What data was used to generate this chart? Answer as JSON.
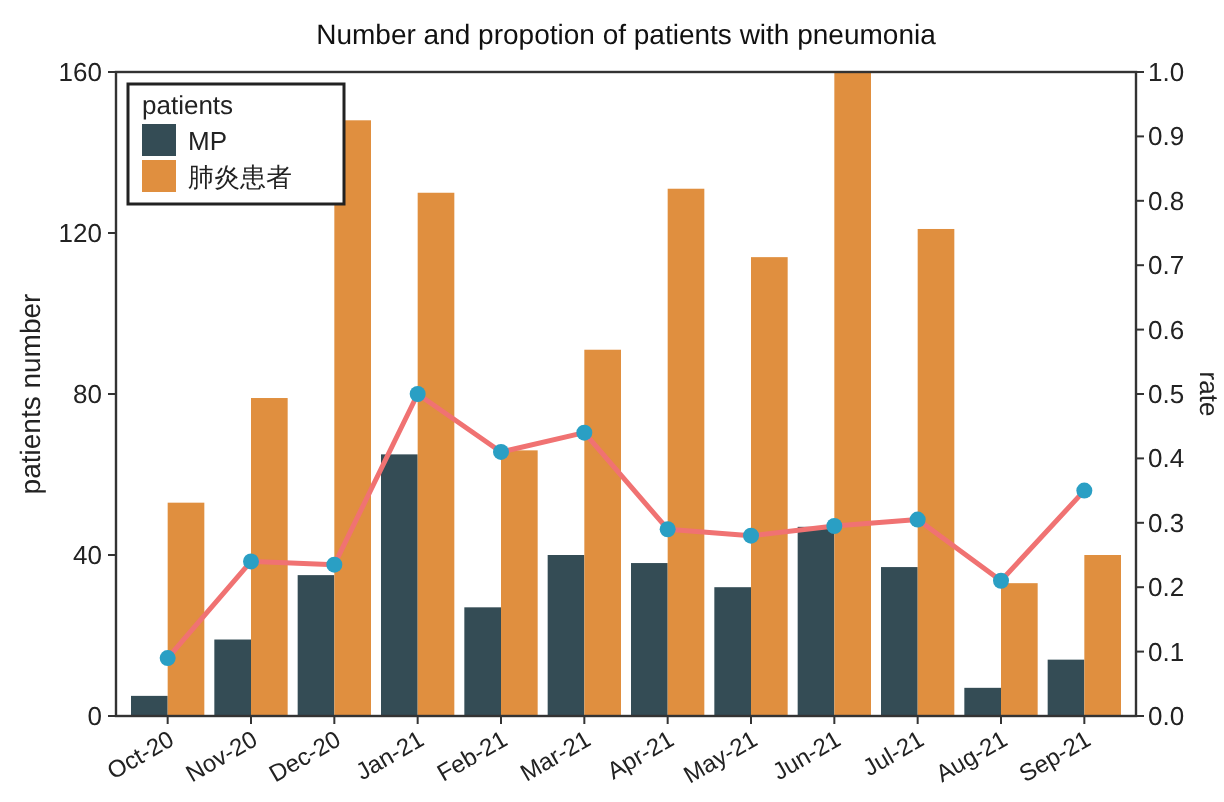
{
  "chart_data": {
    "type": "bar",
    "title": "Number and propotion of patients with pneumonia",
    "ylabel": "patients number",
    "y2label": "rate",
    "categories": [
      "Oct-20",
      "Nov-20",
      "Dec-20",
      "Jan-21",
      "Feb-21",
      "Mar-21",
      "Apr-21",
      "May-21",
      "Jun-21",
      "Jul-21",
      "Aug-21",
      "Sep-21"
    ],
    "series": [
      {
        "name": "MP",
        "color": "#344c55",
        "values": [
          5,
          19,
          35,
          65,
          27,
          40,
          38,
          32,
          47,
          37,
          7,
          14
        ]
      },
      {
        "name": "肺炎患者",
        "color": "#e08f3f",
        "values": [
          53,
          79,
          148,
          130,
          66,
          91,
          131,
          114,
          160,
          121,
          33,
          40
        ]
      },
      {
        "type": "line",
        "axis": "y2",
        "color": "#f07272",
        "marker": "circle",
        "values": [
          0.09,
          0.24,
          0.235,
          0.5,
          0.41,
          0.44,
          0.29,
          0.28,
          0.295,
          0.305,
          0.21,
          0.35
        ]
      }
    ],
    "ylim": [
      0,
      160
    ],
    "yticks": [
      0,
      40,
      80,
      120,
      160
    ],
    "y2lim": [
      0,
      1
    ],
    "y2ticks": [
      {
        "value": 0,
        "label": "0.0"
      },
      {
        "value": 0.1,
        "label": "0.1"
      },
      {
        "value": 0.2,
        "label": "0.2"
      },
      {
        "value": 0.3,
        "label": "0.3"
      },
      {
        "value": 0.4,
        "label": "0.4"
      },
      {
        "value": 0.5,
        "label": "0.5"
      },
      {
        "value": 0.6,
        "label": "0.6"
      },
      {
        "value": 0.7,
        "label": "0.7"
      },
      {
        "value": 0.8,
        "label": "0.8"
      },
      {
        "value": 0.9,
        "label": "0.9"
      },
      {
        "value": 1,
        "label": "1.0"
      }
    ],
    "grid": false,
    "legend": "top left",
    "legend_title": "patients"
  }
}
